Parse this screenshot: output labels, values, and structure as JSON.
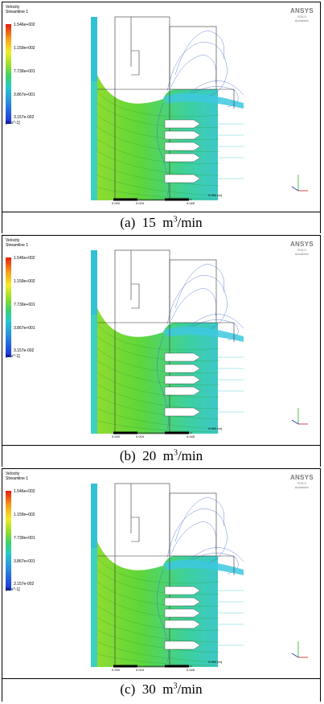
{
  "legend": {
    "title_line1": "Velocity",
    "title_line2": "Streamline 1",
    "ticks": [
      "1.546e+002",
      "1.159e+002",
      "7.730e+001",
      "3.867e+001",
      "3.157e-002"
    ],
    "unit": "[m s^-1]"
  },
  "brand": {
    "logo": "ANSYS",
    "version": "R15.0",
    "edition": "Academic"
  },
  "scale_bar": {
    "start": "0.000",
    "mid1": "0.015",
    "mid2": "0.045",
    "end": "0.060 (m)"
  },
  "panels": [
    {
      "label": "(a)",
      "flow": "15",
      "unit_m": "m",
      "unit_exp": "3",
      "unit_rest": "/min"
    },
    {
      "label": "(b)",
      "flow": "20",
      "unit_m": "m",
      "unit_exp": "3",
      "unit_rest": "/min"
    },
    {
      "label": "(c)",
      "flow": "30",
      "unit_m": "m",
      "unit_exp": "3",
      "unit_rest": "/min"
    }
  ],
  "colors": {
    "flow_green": "#5fd63a",
    "flow_cyan": "#3dd0c0",
    "outline_dark": "#333333"
  }
}
